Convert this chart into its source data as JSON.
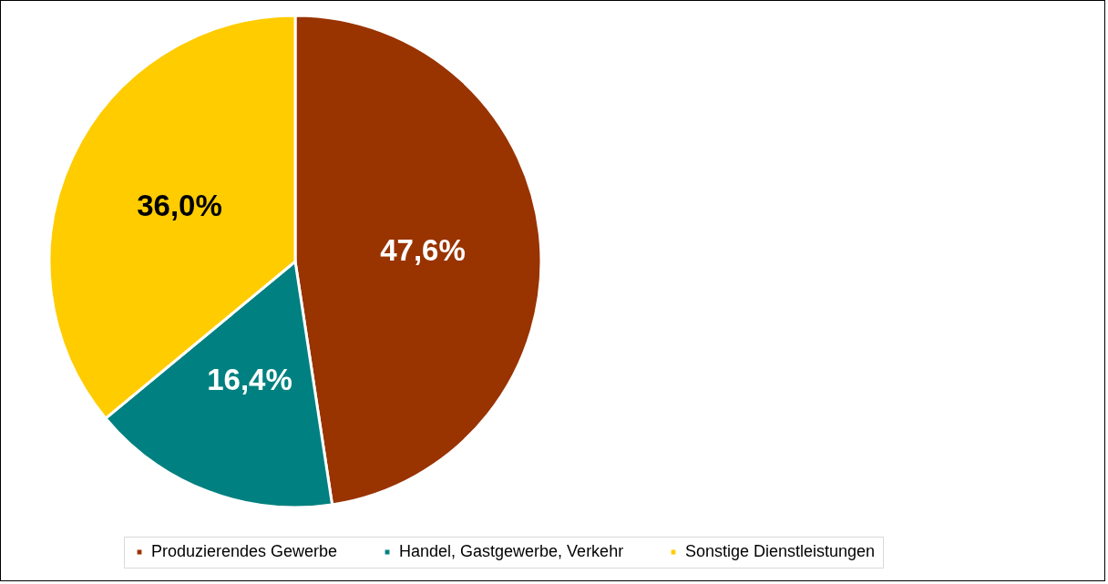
{
  "chart_data": {
    "type": "pie",
    "categories": [
      "Produzierendes Gewerbe",
      "Handel, Gastgewerbe, Verkehr",
      "Sonstige Dienstleistungen"
    ],
    "values": [
      47.6,
      16.4,
      36.0
    ],
    "colors": [
      "#993300",
      "#008080",
      "#ffcc00"
    ],
    "value_labels": [
      "47,6%",
      "16,4%",
      "36,0%"
    ],
    "legend": "bottom"
  }
}
